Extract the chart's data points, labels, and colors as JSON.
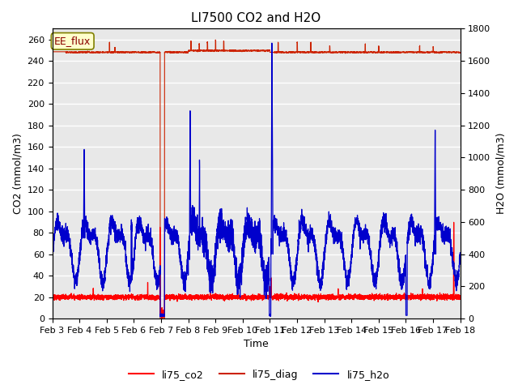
{
  "title": "LI7500 CO2 and H2O",
  "xlabel": "Time",
  "ylabel_left": "CO2 (mmol/m3)",
  "ylabel_right": "H2O (mmol/m3)",
  "annotation": "EE_flux",
  "ylim_left": [
    0,
    270
  ],
  "ylim_right": [
    0,
    1800
  ],
  "yticks_left": [
    0,
    20,
    40,
    60,
    80,
    100,
    120,
    140,
    160,
    180,
    200,
    220,
    240,
    260
  ],
  "yticks_right": [
    0,
    200,
    400,
    600,
    800,
    1000,
    1200,
    1400,
    1600,
    1800
  ],
  "xtick_labels": [
    "Feb 3",
    "Feb 4",
    "Feb 5",
    "Feb 6",
    "Feb 7",
    "Feb 8",
    "Feb 9",
    "Feb 10",
    "Feb 11",
    "Feb 12",
    "Feb 13",
    "Feb 14",
    "Feb 15",
    "Feb 16",
    "Feb 17",
    "Feb 18"
  ],
  "colors": {
    "co2": "#FF0000",
    "diag": "#CC2200",
    "h2o": "#0000CC",
    "background": "#E8E8E8",
    "annotation_bg": "#FFFFCC",
    "annotation_border": "#888800"
  },
  "legend_entries": [
    "li75_co2",
    "li75_diag",
    "li75_h2o"
  ],
  "grid_color": "#FFFFFF",
  "title_fontsize": 11,
  "label_fontsize": 9,
  "tick_fontsize": 8
}
